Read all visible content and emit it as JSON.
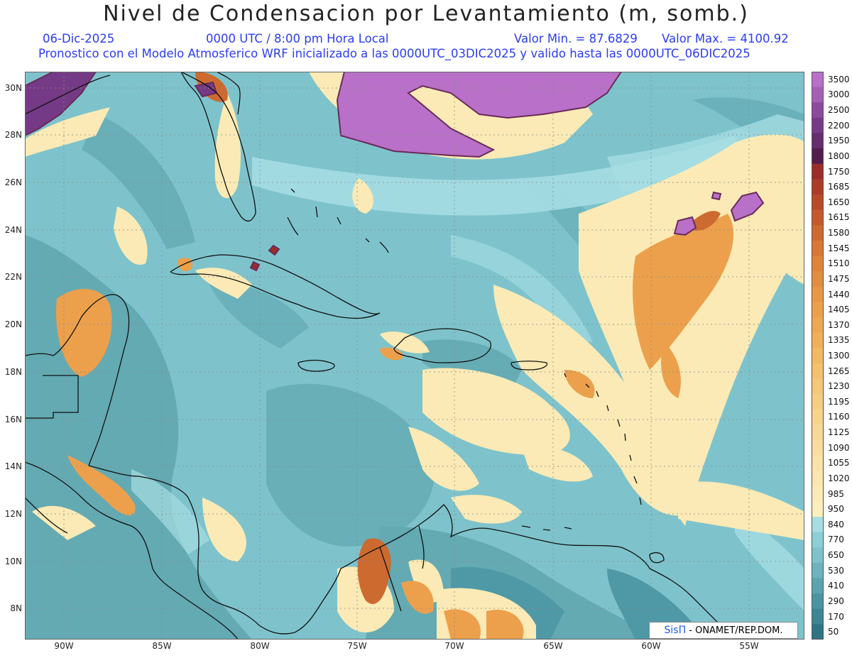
{
  "header": {
    "title": "Nivel de Condensacion por Levantamiento (m, somb.)",
    "date": "06-Dic-2025",
    "time": "0000 UTC / 8:00 pm Hora Local",
    "min": "Valor Min. = 87.6829",
    "max": "Valor Max. = 4100.92",
    "info": "Pronostico con el Modelo Atmosferico WRF inicializado a las 0000UTC_03DIC2025 y valido hasta las  0000UTC_06DIC2025"
  },
  "map": {
    "lon_ticks": [
      "90W",
      "85W",
      "80W",
      "75W",
      "70W",
      "65W",
      "60W",
      "55W"
    ],
    "lat_ticks": [
      "30N",
      "28N",
      "26N",
      "24N",
      "22N",
      "20N",
      "18N",
      "16N",
      "14N",
      "12N",
      "10N",
      "8N"
    ],
    "base_color": "#7ec3cc",
    "land_color": "#64aab3",
    "coast_color": "#111111"
  },
  "legend": {
    "labels": [
      "3500",
      "3000",
      "2500",
      "2200",
      "1950",
      "1800",
      "1750",
      "1685",
      "1650",
      "1615",
      "1580",
      "1545",
      "1510",
      "1475",
      "1440",
      "1405",
      "1370",
      "1335",
      "1300",
      "1265",
      "1230",
      "1195",
      "1160",
      "1125",
      "1090",
      "1055",
      "1020",
      "985",
      "950",
      "840",
      "770",
      "650",
      "530",
      "410",
      "290",
      "170",
      "50"
    ],
    "colors": [
      "#b870c8",
      "#a45fb4",
      "#8c4a9c",
      "#753a86",
      "#632d6e",
      "#521d4c",
      "#9a2d2a",
      "#ab3c28",
      "#b84a28",
      "#c45a2c",
      "#cd6a2f",
      "#d87834",
      "#de843a",
      "#e28e40",
      "#e89746",
      "#eca04c",
      "#eea853",
      "#f0b05b",
      "#f2b964",
      "#f4c06e",
      "#f5c778",
      "#f6cd82",
      "#f7d38c",
      "#f8d896",
      "#f9dd9e",
      "#f9e2a6",
      "#fae6ae",
      "#fbeab5",
      "#fbeebc",
      "#a6dde3",
      "#8ccfd7",
      "#7ec3cc",
      "#6cb3be",
      "#5ba3b0",
      "#4b94a2",
      "#3d8594",
      "#2e7485"
    ]
  },
  "credit": {
    "brand": "SisΠ",
    "text": " - ONAMET/REP.DOM."
  }
}
